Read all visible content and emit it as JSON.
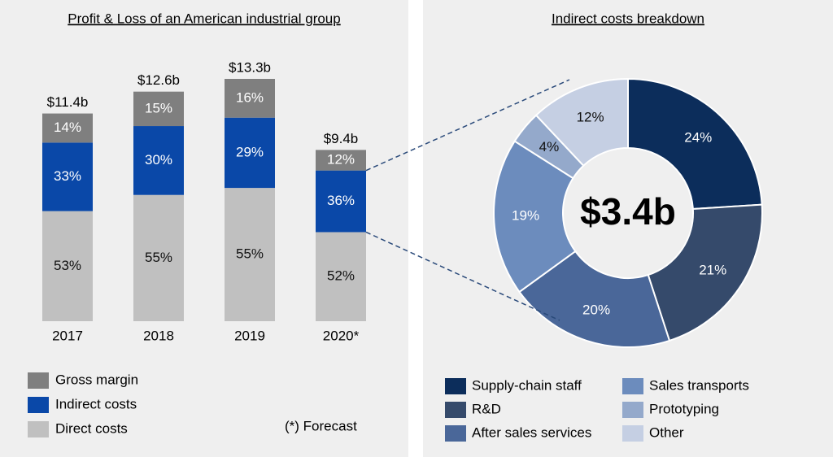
{
  "chart_data": [
    {
      "type": "bar",
      "title": "Profit & Loss of an American industrial group",
      "categories": [
        "2017",
        "2018",
        "2019",
        "2020*"
      ],
      "series": [
        {
          "name": "Direct costs",
          "color": "#c0c0c0",
          "label_color": "#111111",
          "values": [
            53,
            55,
            55,
            52
          ],
          "value_labels": [
            "53%",
            "55%",
            "55%",
            "52%"
          ]
        },
        {
          "name": "Indirect costs",
          "color": "#0a48a8",
          "label_color": "#ffffff",
          "values": [
            33,
            30,
            29,
            36
          ],
          "value_labels": [
            "33%",
            "30%",
            "29%",
            "36%"
          ]
        },
        {
          "name": "Gross margin",
          "color": "#7f7f7f",
          "label_color": "#ffffff",
          "values": [
            14,
            15,
            16,
            12
          ],
          "value_labels": [
            "14%",
            "15%",
            "16%",
            "12%"
          ]
        }
      ],
      "totals": {
        "values": [
          11.4,
          12.6,
          13.3,
          9.4
        ],
        "value_labels": [
          "$11.4b",
          "$12.6b",
          "$13.3b",
          "$9.4b"
        ]
      },
      "annotation": "(*) Forecast"
    },
    {
      "type": "pie",
      "title": "Indirect costs breakdown",
      "center_label": "$3.4b",
      "categories": [
        "Supply-chain staff",
        "R&D",
        "After sales services",
        "Sales transports",
        "Prototyping",
        "Other"
      ],
      "values": [
        24,
        21,
        20,
        19,
        4,
        12
      ],
      "value_labels": [
        "24%",
        "21%",
        "20%",
        "19%",
        "4%",
        "12%"
      ],
      "colors": [
        "#0c2d5b",
        "#354a6b",
        "#4a6799",
        "#6c8cbd",
        "#94a9cb",
        "#c5cfe3"
      ],
      "label_colors": [
        "#ffffff",
        "#ffffff",
        "#ffffff",
        "#ffffff",
        "#111111",
        "#111111"
      ]
    }
  ]
}
